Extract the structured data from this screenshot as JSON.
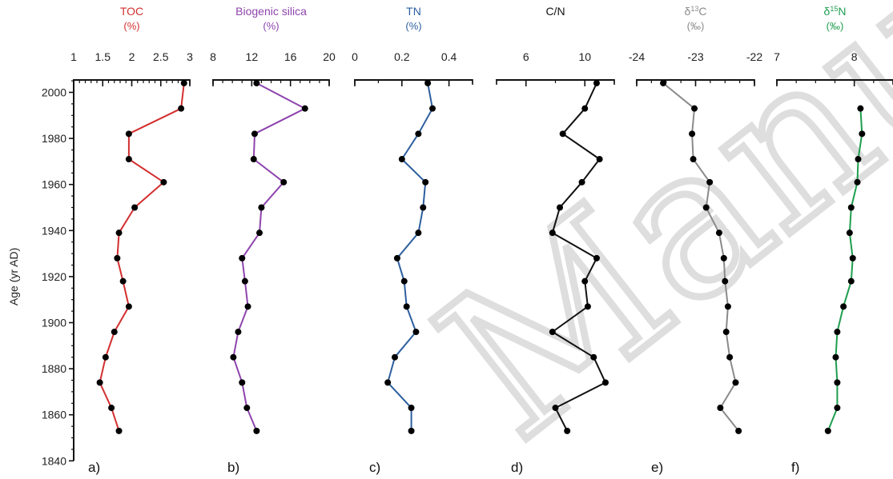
{
  "figure": {
    "y_axis": {
      "label": "Age (yr AD)",
      "ticks": [
        "2000",
        "1980",
        "1960",
        "1940",
        "1920",
        "1900",
        "1880",
        "1860",
        "1840"
      ],
      "ylim": [
        1840,
        2010
      ],
      "major_step": 20,
      "minor_step": 5
    },
    "watermark": "Manuscript"
  },
  "chart_data": [
    {
      "type": "line",
      "panel_letter": "a)",
      "title": "TOC",
      "unit": "(%)",
      "color": "#d32f2f",
      "xlim": [
        1,
        3
      ],
      "xticks": [
        1,
        1.5,
        2,
        2.5,
        3
      ],
      "xtick_labels": [
        "1",
        "1.5",
        "2",
        "2.5",
        "3"
      ],
      "minor_step": 0.1,
      "x": [
        2.9,
        2.85,
        1.95,
        1.95,
        2.55,
        2.05,
        1.78,
        1.75,
        1.85,
        1.95,
        1.7,
        1.55,
        1.45,
        1.65,
        1.78
      ],
      "y": [
        2004,
        1993,
        1982,
        1971,
        1961,
        1950,
        1939,
        1928,
        1918,
        1907,
        1896,
        1885,
        1874,
        1863,
        1853
      ]
    },
    {
      "type": "line",
      "panel_letter": "b)",
      "title": "Biogenic silica",
      "unit": "(%)",
      "color": "#8e44ad",
      "xlim": [
        8,
        20
      ],
      "xticks": [
        8,
        12,
        16,
        20
      ],
      "xtick_labels": [
        "8",
        "12",
        "16",
        "20"
      ],
      "minor_step": 1,
      "x": [
        12.5,
        17.5,
        12.3,
        12.2,
        15.3,
        13,
        12.8,
        11,
        11.3,
        11.6,
        10.6,
        10.1,
        11,
        11.5,
        12.5
      ],
      "y": [
        2004,
        1993,
        1982,
        1971,
        1961,
        1950,
        1939,
        1928,
        1918,
        1907,
        1896,
        1885,
        1874,
        1863,
        1853
      ]
    },
    {
      "type": "line",
      "panel_letter": "c)",
      "title": "TN",
      "unit": "(%)",
      "color": "#2c5f9e",
      "xlim": [
        0,
        0.5
      ],
      "xticks": [
        0,
        0.2,
        0.4
      ],
      "xtick_labels": [
        "0",
        "0.2",
        "0.4"
      ],
      "minor_step": 0.1,
      "x": [
        0.31,
        0.33,
        0.27,
        0.2,
        0.3,
        0.29,
        0.27,
        0.18,
        0.21,
        0.22,
        0.26,
        0.17,
        0.14,
        0.24,
        0.24
      ],
      "y": [
        2004,
        1993,
        1982,
        1971,
        1961,
        1950,
        1939,
        1928,
        1918,
        1907,
        1896,
        1885,
        1874,
        1863,
        1853
      ]
    },
    {
      "type": "line",
      "panel_letter": "d)",
      "title": "C/N",
      "unit": "",
      "color": "#111111",
      "xlim": [
        4,
        12
      ],
      "xticks": [
        6,
        10
      ],
      "xtick_labels": [
        "6",
        "10"
      ],
      "minor_step": 2,
      "x": [
        10.8,
        10.0,
        8.5,
        11.0,
        9.8,
        8.3,
        7.8,
        10.8,
        10.0,
        10.2,
        7.8,
        10.6,
        11.4,
        8.0,
        8.8
      ],
      "y": [
        2004,
        1993,
        1982,
        1971,
        1961,
        1950,
        1939,
        1928,
        1918,
        1907,
        1896,
        1885,
        1874,
        1863,
        1853
      ]
    },
    {
      "type": "line",
      "panel_letter": "e)",
      "title": "δ13C",
      "unit": "(‰)",
      "color": "#8a8a8a",
      "xlim": [
        -24,
        -22
      ],
      "xticks": [
        -24,
        -23,
        -22
      ],
      "xtick_labels": [
        "-24",
        "-23",
        "-22"
      ],
      "minor_step": 0.25,
      "x": [
        -23.55,
        -23.02,
        -23.06,
        -23.04,
        -22.76,
        -22.82,
        -22.6,
        -22.52,
        -22.5,
        -22.45,
        -22.48,
        -22.42,
        -22.32,
        -22.58,
        -22.27
      ],
      "y": [
        2004,
        1993,
        1982,
        1971,
        1961,
        1950,
        1939,
        1928,
        1918,
        1907,
        1896,
        1885,
        1874,
        1863,
        1853
      ]
    },
    {
      "type": "line",
      "panel_letter": "f)",
      "title": "δ15N",
      "unit": "(‰)",
      "color": "#1e9e4f",
      "xlim": [
        7,
        8.5
      ],
      "xticks": [
        7,
        8
      ],
      "xtick_labels": [
        "7",
        "8"
      ],
      "minor_step": 0.25,
      "x": [
        8.08,
        8.1,
        8.05,
        8.04,
        7.96,
        7.94,
        7.98,
        7.96,
        7.86,
        7.78,
        7.76,
        7.78,
        7.78,
        7.66
      ],
      "y": [
        1993,
        1982,
        1971,
        1961,
        1950,
        1939,
        1928,
        1918,
        1907,
        1896,
        1885,
        1874,
        1863,
        1853
      ]
    }
  ]
}
